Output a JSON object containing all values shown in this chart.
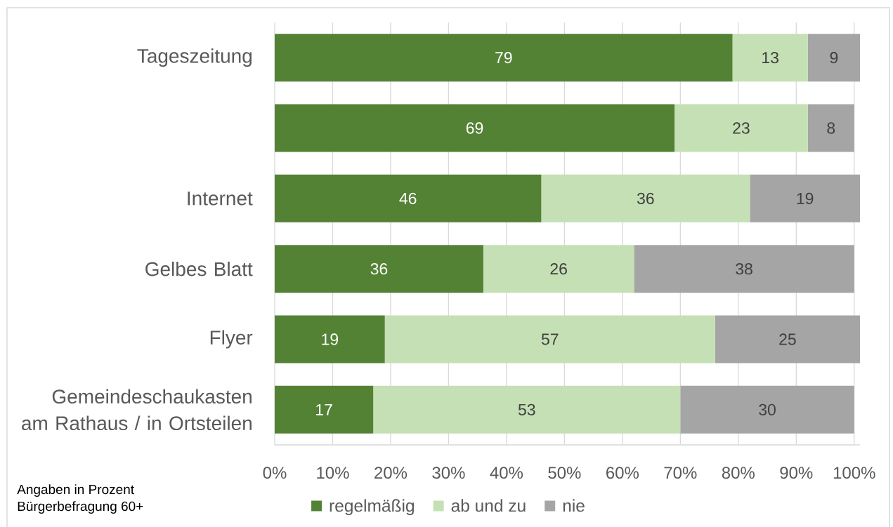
{
  "chart_data": {
    "type": "bar",
    "orientation": "horizontal",
    "stacked": true,
    "categories": [
      "Tageszeitung",
      null,
      "Internet",
      "Gelbes Blatt",
      "Flyer",
      "Gemeindeschaukasten am Rathaus / in Ortsteilen"
    ],
    "series": [
      {
        "name": "regelmäßig",
        "color": "#548235",
        "values": [
          79,
          69,
          46,
          36,
          19,
          17
        ]
      },
      {
        "name": "ab und zu",
        "color": "#c5e0b4",
        "values": [
          13,
          23,
          36,
          26,
          57,
          53
        ]
      },
      {
        "name": "nie",
        "color": "#a5a5a5",
        "values": [
          9,
          8,
          19,
          38,
          25,
          30
        ]
      }
    ],
    "xlim": [
      0,
      101
    ],
    "xticks": [
      {
        "value": 0,
        "label": "0%"
      },
      {
        "value": 10,
        "label": "10%"
      },
      {
        "value": 20,
        "label": "20%"
      },
      {
        "value": 30,
        "label": "30%"
      },
      {
        "value": 40,
        "label": "40%"
      },
      {
        "value": 50,
        "label": "50%"
      },
      {
        "value": 60,
        "label": "60%"
      },
      {
        "value": 70,
        "label": "70%"
      },
      {
        "value": 80,
        "label": "80%"
      },
      {
        "value": 90,
        "label": "90%"
      },
      {
        "value": 100,
        "label": "100%"
      }
    ],
    "grid": "x",
    "legend": "bottom",
    "data_labels": true,
    "annotations": [
      "Angaben in Prozent",
      "Bürgerbefragung 60+"
    ]
  }
}
